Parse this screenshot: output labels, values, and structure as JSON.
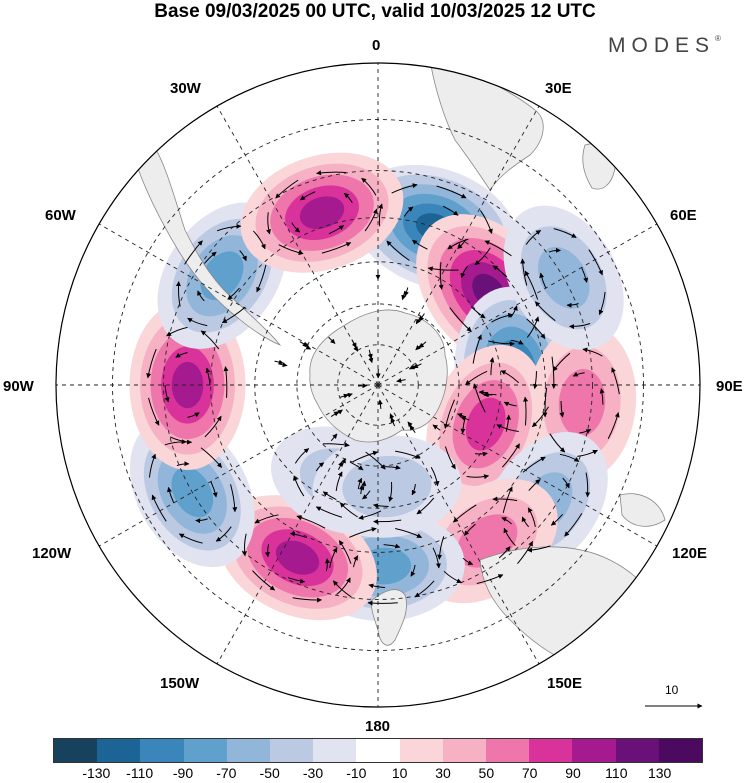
{
  "title": "Base 09/03/2025 00 UTC, valid 10/03/2025 12 UTC",
  "brand": "MODES",
  "brand_mark": "®",
  "longitude_labels": {
    "top": "0",
    "e30": "30E",
    "e60": "60E",
    "e90": "90E",
    "e120": "120E",
    "e150": "150E",
    "bottom": "180",
    "w150": "150W",
    "w120": "120W",
    "w90": "90W",
    "w60": "60W",
    "w30": "30W"
  },
  "vector_reference": {
    "label": "10",
    "value": 10
  },
  "colorbar": {
    "labels": [
      "-130",
      "-110",
      "-90",
      "-70",
      "-50",
      "-30",
      "-10",
      "10",
      "30",
      "50",
      "70",
      "90",
      "110",
      "130"
    ],
    "colors": [
      "#16425e",
      "#1c6496",
      "#3a86bb",
      "#5fa0cc",
      "#92b6da",
      "#bcc9e3",
      "#e2e3f0",
      "#ffffff",
      "#fbd6d8",
      "#f6b1c4",
      "#ef76ab",
      "#d9329a",
      "#a51a8e",
      "#6a1079",
      "#4b0a5f"
    ]
  },
  "map_data": {
    "projection": "south-polar-stereographic",
    "field": "anomaly",
    "anomaly_centers": [
      {
        "sign": "negative",
        "strength": -110,
        "lon": 20,
        "lat": -50
      },
      {
        "sign": "positive",
        "strength": 120,
        "lon": 50,
        "lat": -55
      },
      {
        "sign": "negative",
        "strength": -110,
        "lon": 85,
        "lat": -57
      },
      {
        "sign": "positive",
        "strength": 60,
        "lon": 95,
        "lat": -42
      },
      {
        "sign": "negative",
        "strength": -50,
        "lon": 60,
        "lat": -40
      },
      {
        "sign": "positive",
        "strength": 80,
        "lon": 110,
        "lat": -62
      },
      {
        "sign": "negative",
        "strength": -50,
        "lon": 125,
        "lat": -42
      },
      {
        "sign": "positive",
        "strength": 50,
        "lon": 145,
        "lat": -45
      },
      {
        "sign": "negative",
        "strength": -70,
        "lon": 178,
        "lat": -47
      },
      {
        "sign": "positive",
        "strength": 90,
        "lon": -155,
        "lat": -45
      },
      {
        "sign": "negative",
        "strength": -70,
        "lon": -120,
        "lat": -40
      },
      {
        "sign": "positive",
        "strength": 100,
        "lon": -90,
        "lat": -45
      },
      {
        "sign": "negative",
        "strength": -70,
        "lon": -55,
        "lat": -45
      },
      {
        "sign": "positive",
        "strength": 90,
        "lon": -18,
        "lat": -47
      },
      {
        "sign": "negative",
        "strength": -30,
        "lon": -160,
        "lat": -65
      },
      {
        "sign": "negative",
        "strength": -30,
        "lon": 175,
        "lat": -65
      }
    ]
  }
}
